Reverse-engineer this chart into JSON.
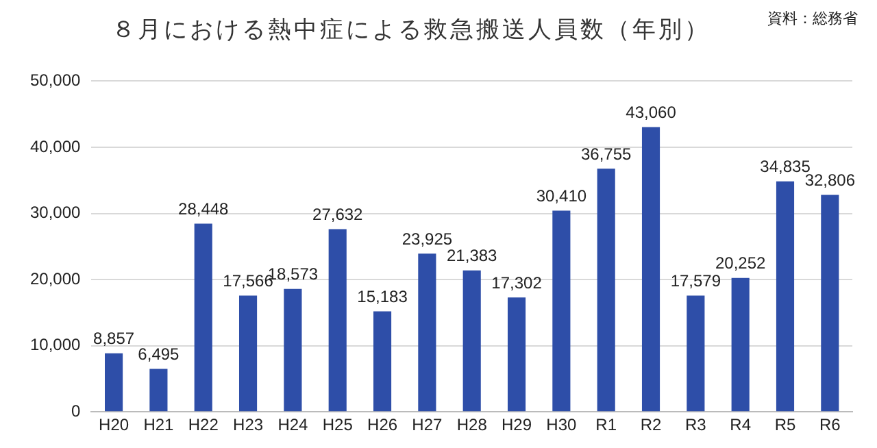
{
  "chart_data": {
    "type": "bar",
    "title": "８月における熱中症による救急搬送人員数（年別）",
    "annotations": [
      "資料：総務省"
    ],
    "categories": [
      "H20",
      "H21",
      "H22",
      "H23",
      "H24",
      "H25",
      "H26",
      "H27",
      "H28",
      "H29",
      "H30",
      "R1",
      "R2",
      "R3",
      "R4",
      "R5",
      "R6"
    ],
    "values": [
      8857,
      6495,
      28448,
      17566,
      18573,
      27632,
      15183,
      23925,
      21383,
      17302,
      30410,
      36755,
      43060,
      17579,
      20252,
      34835,
      32806
    ],
    "color": "#2e4ea8",
    "ylim": [
      0,
      50000
    ],
    "yticks": [
      {
        "value": 0,
        "label": "0"
      },
      {
        "value": 10000,
        "label": "10,000"
      },
      {
        "value": 20000,
        "label": "20,000"
      },
      {
        "value": 30000,
        "label": "30,000"
      },
      {
        "value": 40000,
        "label": "40,000"
      },
      {
        "value": 50000,
        "label": "50,000"
      }
    ],
    "value_labels": [
      "8,857",
      "6,495",
      "28,448",
      "17,566",
      "18,573",
      "27,632",
      "15,183",
      "23,925",
      "21,383",
      "17,302",
      "30,410",
      "36,755",
      "43,060",
      "17,579",
      "20,252",
      "34,835",
      "32,806"
    ],
    "grid": "y",
    "legend": false
  }
}
